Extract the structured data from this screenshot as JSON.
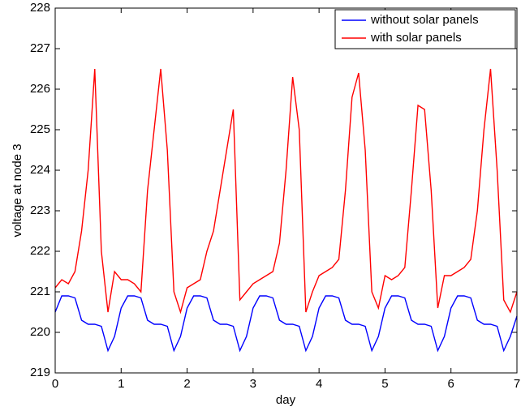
{
  "chart_data": {
    "type": "line",
    "xlabel": "day",
    "ylabel": "voltage at node 3",
    "x": [
      0,
      0.1,
      0.2,
      0.3,
      0.4,
      0.5,
      0.6,
      0.7,
      0.8,
      0.9,
      1,
      1.1,
      1.2,
      1.3,
      1.4,
      1.5,
      1.6,
      1.7,
      1.8,
      1.9,
      2,
      2.1,
      2.2,
      2.3,
      2.4,
      2.5,
      2.6,
      2.7,
      2.8,
      2.9,
      3,
      3.1,
      3.2,
      3.3,
      3.4,
      3.5,
      3.6,
      3.7,
      3.8,
      3.9,
      4,
      4.1,
      4.2,
      4.3,
      4.4,
      4.5,
      4.6,
      4.7,
      4.8,
      4.9,
      5,
      5.1,
      5.2,
      5.3,
      5.4,
      5.5,
      5.6,
      5.7,
      5.8,
      5.9,
      6,
      6.1,
      6.2,
      6.3,
      6.4,
      6.5,
      6.6,
      6.7,
      6.8,
      6.9,
      7
    ],
    "series": [
      {
        "name": "without solar panels",
        "color": "#0000ff",
        "values": [
          220.5,
          220.9,
          220.9,
          220.85,
          220.3,
          220.2,
          220.2,
          220.15,
          219.55,
          219.9,
          220.6,
          220.9,
          220.9,
          220.85,
          220.3,
          220.2,
          220.2,
          220.15,
          219.55,
          219.9,
          220.6,
          220.9,
          220.9,
          220.85,
          220.3,
          220.2,
          220.2,
          220.15,
          219.55,
          219.9,
          220.6,
          220.9,
          220.9,
          220.85,
          220.3,
          220.2,
          220.2,
          220.15,
          219.55,
          219.9,
          220.6,
          220.9,
          220.9,
          220.85,
          220.3,
          220.2,
          220.2,
          220.15,
          219.55,
          219.9,
          220.6,
          220.9,
          220.9,
          220.85,
          220.3,
          220.2,
          220.2,
          220.15,
          219.55,
          219.9,
          220.6,
          220.9,
          220.9,
          220.85,
          220.3,
          220.2,
          220.2,
          220.15,
          219.55,
          219.9,
          220.4
        ]
      },
      {
        "name": "with solar panels",
        "color": "#ff0000",
        "values": [
          221.1,
          221.3,
          221.2,
          221.5,
          222.5,
          224,
          226.5,
          222,
          220.5,
          221.5,
          221.3,
          221.3,
          221.2,
          221,
          223.5,
          225,
          226.5,
          224.5,
          221,
          220.5,
          221.1,
          221.2,
          221.3,
          222,
          222.5,
          223.5,
          224.5,
          225.5,
          220.8,
          221,
          221.2,
          221.3,
          221.4,
          221.5,
          222.2,
          224,
          226.3,
          225,
          220.5,
          221,
          221.4,
          221.5,
          221.6,
          221.8,
          223.5,
          225.8,
          226.4,
          224.5,
          221,
          220.6,
          221.4,
          221.3,
          221.4,
          221.6,
          223.5,
          225.6,
          225.5,
          223.5,
          220.6,
          221.4,
          221.4,
          221.5,
          221.6,
          221.8,
          223,
          225,
          226.5,
          224,
          220.8,
          220.5,
          221
        ]
      }
    ],
    "xlim": [
      0,
      7
    ],
    "xticks": [
      0,
      1,
      2,
      3,
      4,
      5,
      6,
      7
    ],
    "ylim": [
      219,
      228
    ],
    "yticks": [
      219,
      220,
      221,
      222,
      223,
      224,
      225,
      226,
      227,
      228
    ],
    "legend": "upper right"
  }
}
